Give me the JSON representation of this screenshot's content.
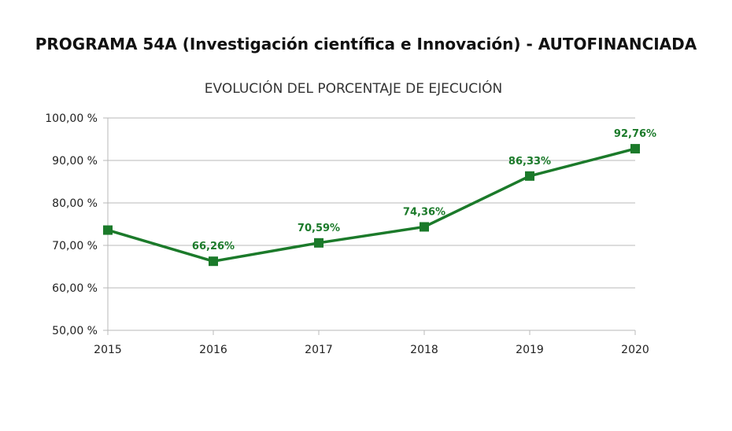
{
  "page_title": "PROGRAMA 54A (Investigación científica e Innovación) - AUTOFINANCIADA",
  "chart_data": {
    "type": "line",
    "title": "EVOLUCIÓN DEL PORCENTAJE DE EJECUCIÓN",
    "xlabel": "",
    "ylabel": "",
    "categories": [
      "2015",
      "2016",
      "2017",
      "2018",
      "2019",
      "2020"
    ],
    "values": [
      73.6,
      66.26,
      70.59,
      74.36,
      86.33,
      92.76
    ],
    "data_labels": [
      "",
      "66,26%",
      "70,59%",
      "74,36%",
      "86,33%",
      "92,76%"
    ],
    "ylim": [
      50,
      100
    ],
    "yticks": [
      50,
      60,
      70,
      80,
      90,
      100
    ],
    "ytick_labels": [
      "50,00 %",
      "60,00 %",
      "70,00 %",
      "80,00 %",
      "90,00 %",
      "100,00 %"
    ],
    "grid": true,
    "color": "#1b7a2a"
  }
}
